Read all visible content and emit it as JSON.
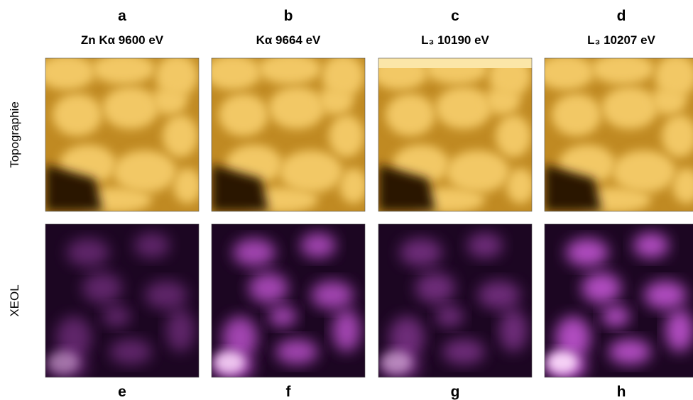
{
  "panels": [
    {
      "letter": "a",
      "title": "Zn Kα 9600 eV"
    },
    {
      "letter": "b",
      "title": "Kα 9664 eV"
    },
    {
      "letter": "c",
      "title": "L₃ 10190 eV"
    },
    {
      "letter": "d",
      "title": "L₃ 10207 eV"
    }
  ],
  "bottom_letters": [
    "e",
    "f",
    "g",
    "h"
  ],
  "row_labels": [
    "Topographie",
    "XEOL"
  ]
}
